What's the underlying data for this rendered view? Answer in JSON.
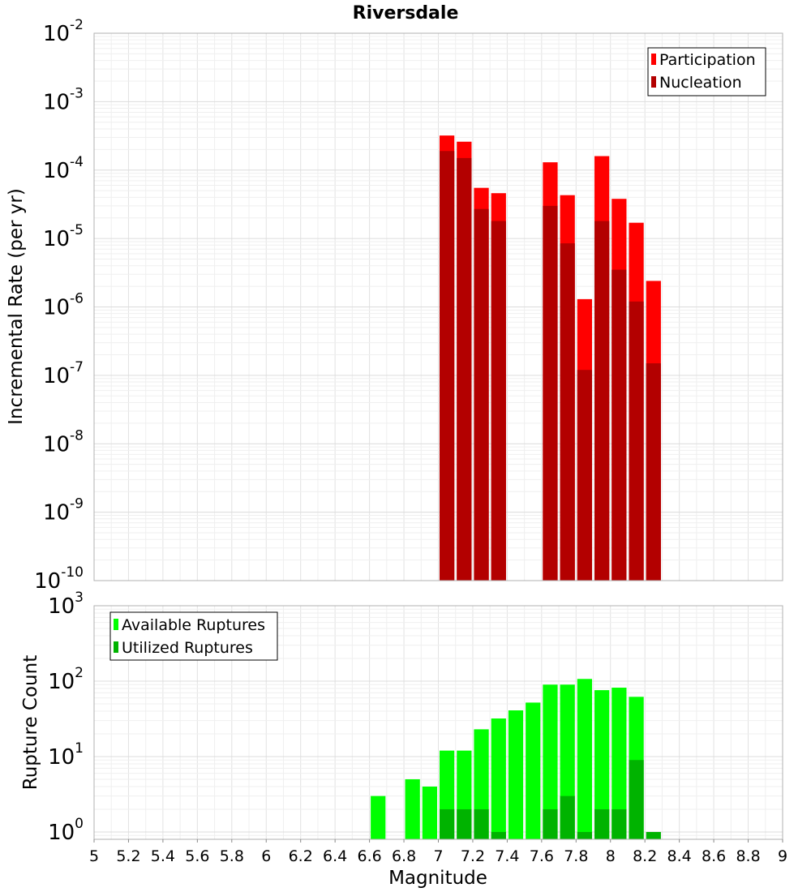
{
  "chart_data": [
    {
      "type": "bar",
      "title": "Riversdale",
      "xlabel": "",
      "ylabel": "Incremental Rate (per yr)",
      "y_scale": "log",
      "ylim": [
        1e-10,
        0.01
      ],
      "xlim": [
        5,
        9
      ],
      "y_tick_exponents": [
        "-10",
        "-9",
        "-8",
        "-7",
        "-6",
        "-5",
        "-4",
        "-3",
        "-2"
      ],
      "grid": true,
      "legend_position": "top-right",
      "series": [
        {
          "name": "Participation",
          "color": "#ff0000",
          "x": [
            7.05,
            7.15,
            7.25,
            7.35,
            7.65,
            7.75,
            7.85,
            7.95,
            8.05,
            8.15,
            8.25
          ],
          "values": [
            0.00032,
            0.00026,
            5.5e-05,
            4.6e-05,
            0.00013,
            4.3e-05,
            1.3e-06,
            0.00016,
            3.8e-05,
            1.7e-05,
            2.4e-06
          ]
        },
        {
          "name": "Nucleation",
          "color": "#b30000",
          "x": [
            7.05,
            7.15,
            7.25,
            7.35,
            7.65,
            7.75,
            7.85,
            7.95,
            8.05,
            8.15,
            8.25
          ],
          "values": [
            0.00019,
            0.00015,
            2.7e-05,
            1.8e-05,
            3e-05,
            8.5e-06,
            1.2e-07,
            1.8e-05,
            3.5e-06,
            1.2e-06,
            1.5e-07
          ]
        }
      ]
    },
    {
      "type": "bar",
      "title": "",
      "xlabel": "Magnitude",
      "ylabel": "Rupture Count",
      "y_scale": "log",
      "ylim": [
        0.8,
        1000
      ],
      "xlim": [
        5,
        9
      ],
      "y_tick_exponents": [
        "0",
        "1",
        "2",
        "3"
      ],
      "x_ticks": [
        "5",
        "5.2",
        "5.4",
        "5.6",
        "5.8",
        "6",
        "6.2",
        "6.4",
        "6.6",
        "6.8",
        "7",
        "7.2",
        "7.4",
        "7.6",
        "7.8",
        "8",
        "8.2",
        "8.4",
        "8.6",
        "8.8",
        "9"
      ],
      "grid": true,
      "legend_position": "top-left",
      "series": [
        {
          "name": "Available Ruptures",
          "color": "#00ff00",
          "x": [
            6.65,
            6.85,
            6.95,
            7.05,
            7.15,
            7.25,
            7.35,
            7.45,
            7.55,
            7.65,
            7.75,
            7.85,
            7.95,
            8.05,
            8.15
          ],
          "values": [
            3,
            5,
            4,
            12,
            12,
            23,
            32,
            41,
            52,
            90,
            90,
            107,
            76,
            82,
            62
          ]
        },
        {
          "name": "Utilized Ruptures",
          "color": "#00b300",
          "x": [
            7.05,
            7.15,
            7.25,
            7.35,
            7.65,
            7.75,
            7.85,
            7.95,
            8.05,
            8.15,
            8.25
          ],
          "values": [
            2,
            2,
            2,
            1,
            2,
            3,
            1,
            2,
            2,
            9,
            1
          ]
        }
      ]
    }
  ]
}
